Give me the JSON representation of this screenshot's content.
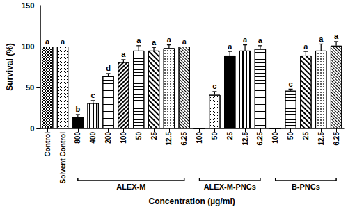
{
  "chart_data": {
    "type": "bar",
    "categories": [
      "Control",
      "Solvent Control",
      "800",
      "400",
      "200",
      "100",
      "50",
      "25",
      "12.5",
      "6.25",
      "100",
      "50",
      "25",
      "12.5",
      "6.25",
      "100",
      "50",
      "25",
      "12.5",
      "6.25"
    ],
    "values": [
      100,
      100,
      14,
      31,
      64,
      81,
      95,
      95,
      98,
      100,
      0,
      41,
      89,
      95,
      97,
      0,
      46,
      89,
      95,
      101
    ],
    "errors": [
      0,
      0,
      3,
      3,
      3,
      3,
      6,
      4,
      4,
      0,
      0,
      4,
      5,
      7,
      4,
      0,
      2,
      5,
      8,
      5
    ],
    "annotations": [
      "a",
      "a",
      "b",
      "c",
      "d",
      "a",
      "a",
      "a",
      "a",
      "a",
      null,
      "c",
      "a",
      "a",
      "a",
      null,
      "c",
      "a",
      "a",
      "a"
    ],
    "groups": [
      {
        "label": "ALEX-M",
        "start": 2,
        "end": 9
      },
      {
        "label": "ALEX-M-PNCs",
        "start": 10,
        "end": 14
      },
      {
        "label": "B-PNCs",
        "start": 15,
        "end": 19
      }
    ],
    "xlabel": "Concentration (µg/ml)",
    "ylabel": "Survival (%)",
    "ylim": [
      0,
      150
    ],
    "yticks": [
      0,
      50,
      100,
      150
    ],
    "color": "#000000",
    "grid": false
  }
}
